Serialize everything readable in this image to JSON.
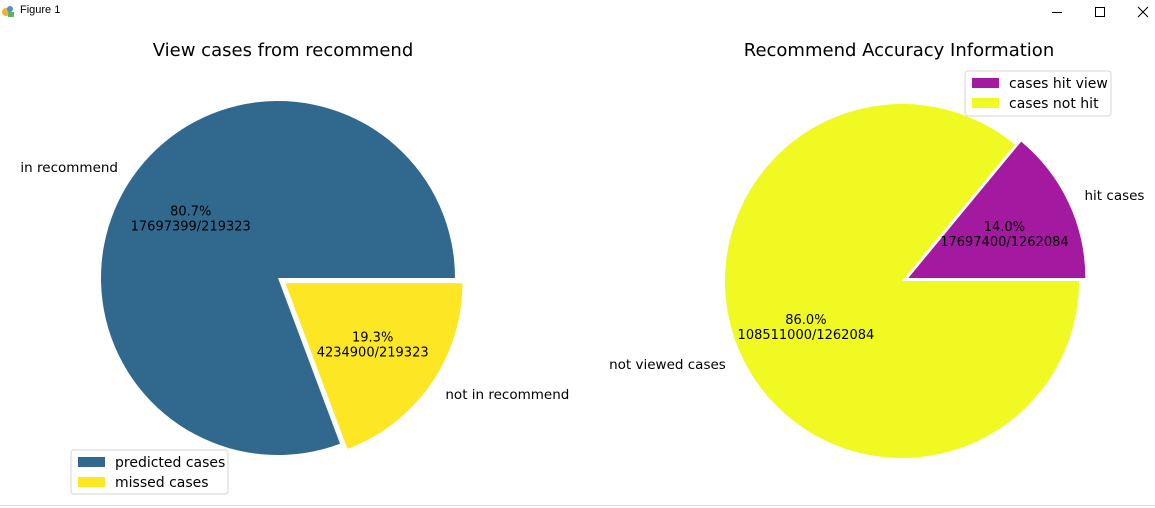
{
  "window": {
    "title": "Figure 1",
    "icons": {
      "app": "figure-app-icon",
      "minimize": "minimize-icon",
      "maximize": "maximize-icon",
      "close": "close-icon"
    }
  },
  "chart_data": [
    {
      "type": "pie",
      "title": "View cases from recommend",
      "categories": [
        "in recommend",
        "not in recommend"
      ],
      "values": [
        80.7,
        19.3
      ],
      "percent_labels": [
        "80.7%",
        "19.3%"
      ],
      "ratio_labels": [
        "17697399/219323",
        "4234900/219323"
      ],
      "colors": [
        "#31698e",
        "#fde725"
      ],
      "exploded": [
        false,
        true
      ],
      "legend": {
        "placement": "lower-left",
        "entries": [
          "predicted cases",
          "missed cases"
        ]
      }
    },
    {
      "type": "pie",
      "title": "Recommend Accuracy Information",
      "categories": [
        "hit cases",
        "not viewed cases"
      ],
      "values": [
        14.0,
        86.0
      ],
      "percent_labels": [
        "14.0%",
        "86.0%"
      ],
      "ratio_labels": [
        "17697400/1262084",
        "108511000/1262084"
      ],
      "colors": [
        "#a3199f",
        "#f0f921"
      ],
      "exploded": [
        true,
        false
      ],
      "legend": {
        "placement": "upper-right",
        "entries": [
          "cases hit view",
          " cases not hit"
        ]
      }
    }
  ]
}
